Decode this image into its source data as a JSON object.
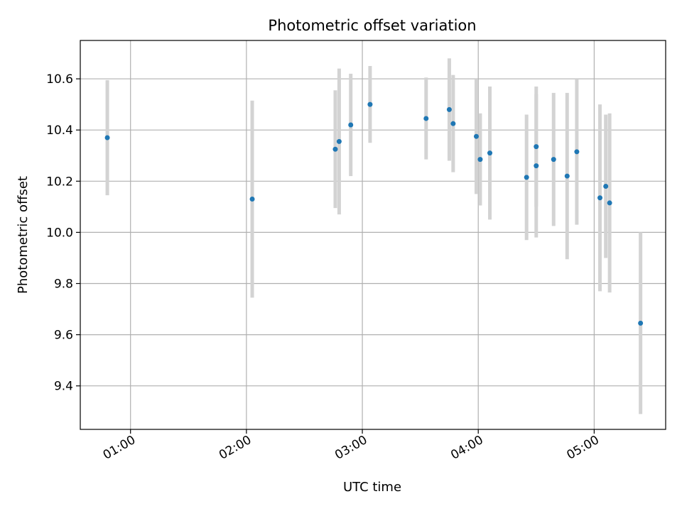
{
  "chart_data": {
    "type": "scatter",
    "title": "Photometric offset variation",
    "xlabel": "UTC time",
    "ylabel": "Photometric offset",
    "grid": true,
    "colors": {
      "point": "#1f77b4",
      "errorbar": "#d3d3d3",
      "grid": "#b0b0b0",
      "axes": "#000000"
    },
    "xlim": [
      "00:34",
      "05:37"
    ],
    "ylim": [
      9.23,
      10.75
    ],
    "xticks": [
      "01:00",
      "02:00",
      "03:00",
      "04:00",
      "05:00"
    ],
    "yticks": [
      "9.4",
      "9.6",
      "9.8",
      "10.0",
      "10.2",
      "10.4",
      "10.6"
    ],
    "points": [
      {
        "x": "00:48",
        "y": 10.37,
        "err": 0.225
      },
      {
        "x": "02:03",
        "y": 10.13,
        "err": 0.385
      },
      {
        "x": "02:46",
        "y": 10.325,
        "err": 0.23
      },
      {
        "x": "02:48",
        "y": 10.355,
        "err": 0.285
      },
      {
        "x": "02:54",
        "y": 10.42,
        "err": 0.2
      },
      {
        "x": "03:04",
        "y": 10.5,
        "err": 0.15
      },
      {
        "x": "03:33",
        "y": 10.445,
        "err": 0.16
      },
      {
        "x": "03:45",
        "y": 10.48,
        "err": 0.2
      },
      {
        "x": "03:47",
        "y": 10.425,
        "err": 0.19
      },
      {
        "x": "03:59",
        "y": 10.375,
        "err": 0.225
      },
      {
        "x": "04:01",
        "y": 10.285,
        "err": 0.18
      },
      {
        "x": "04:06",
        "y": 10.31,
        "err": 0.26
      },
      {
        "x": "04:25",
        "y": 10.215,
        "err": 0.245
      },
      {
        "x": "04:30",
        "y": 10.335,
        "err": 0.235
      },
      {
        "x": "04:30",
        "y": 10.26,
        "err": 0.28
      },
      {
        "x": "04:39",
        "y": 10.285,
        "err": 0.26
      },
      {
        "x": "04:46",
        "y": 10.22,
        "err": 0.325
      },
      {
        "x": "04:51",
        "y": 10.315,
        "err": 0.285
      },
      {
        "x": "05:03",
        "y": 10.135,
        "err": 0.365
      },
      {
        "x": "05:06",
        "y": 10.18,
        "err": 0.28
      },
      {
        "x": "05:08",
        "y": 10.115,
        "err": 0.35
      },
      {
        "x": "05:24",
        "y": 9.645,
        "err": 0.355
      }
    ]
  }
}
